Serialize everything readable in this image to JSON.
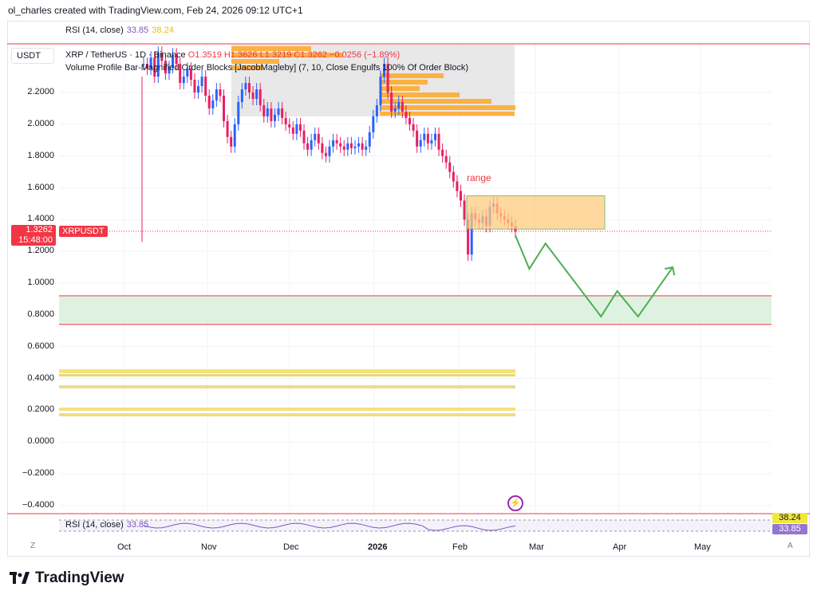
{
  "header": {
    "text": "ol_charles created with TradingView.com, Feb 24, 2026 09:12 UTC+1"
  },
  "rsi_top": {
    "label": "RSI (14, close)",
    "value1": "33.85",
    "value2": "38.24"
  },
  "currency": "USDT",
  "legend": {
    "symbol": "XRP / TetherUS · 1D · Binance",
    "ohlc": "O1.3519 H1.3626 L1.3219 C1.3262 −0.0256 (−1.89%)",
    "indicator": "Volume Profile Bar-Magnified Order Blocks [JacobMagleby] (7, 10, Close Engulfs 100% Of Order Block)"
  },
  "price_tag": {
    "price": "1.3262",
    "countdown": "15:48:00",
    "symbol": "XRPUSDT"
  },
  "annotation": {
    "range_label": "range"
  },
  "rsi_bottom": {
    "label": "RSI (14, close)",
    "value1": "33.85",
    "badge_yellow": "38.24",
    "badge_purple": "33.85"
  },
  "zoom": {
    "left": "Z",
    "right": "A"
  },
  "footer": {
    "brand": "TradingView"
  },
  "colors": {
    "up": "#2962ff",
    "down": "#e91e63",
    "projection": "#4caf50",
    "zone_red": "#f23645"
  },
  "chart_data": {
    "type": "candlestick",
    "y_ticks": [
      "2.2000",
      "2.0000",
      "1.8000",
      "1.6000",
      "1.4000",
      "1.2000",
      "1.0000",
      "0.8000",
      "0.6000",
      "0.4000",
      "0.2000",
      "0.0000",
      "−0.2000",
      "−0.4000"
    ],
    "x_ticks": [
      {
        "label": "Oct",
        "bold": false
      },
      {
        "label": "Nov",
        "bold": false
      },
      {
        "label": "Dec",
        "bold": false
      },
      {
        "label": "2026",
        "bold": true
      },
      {
        "label": "Feb",
        "bold": false
      },
      {
        "label": "Mar",
        "bold": false
      },
      {
        "label": "Apr",
        "bold": false
      },
      {
        "label": "May",
        "bold": false
      }
    ],
    "ylim": [
      -0.45,
      2.45
    ],
    "last_price": 1.3262,
    "range_box": {
      "x0": 0,
      "x1": 0,
      "y_low": 1.34,
      "y_high": 1.55
    },
    "support_zone": {
      "y_low": 0.74,
      "y_high": 0.92
    },
    "projection_path": [
      [
        1.3,
        0
      ],
      [
        1.09,
        0
      ],
      [
        1.25,
        0
      ],
      [
        0.79,
        0
      ],
      [
        0.95,
        0
      ],
      [
        0.79,
        0
      ],
      [
        1.1,
        0
      ]
    ],
    "projection_x_frac": [
      0.0,
      0.06,
      0.13,
      0.37,
      0.44,
      0.53,
      0.68
    ],
    "series_close": [
      2.38,
      2.35,
      2.42,
      2.3,
      2.45,
      2.4,
      2.32,
      2.36,
      2.44,
      2.38,
      2.26,
      2.3,
      2.35,
      2.28,
      2.2,
      2.24,
      2.3,
      2.18,
      2.1,
      2.15,
      2.22,
      2.18,
      2.02,
      1.92,
      1.86,
      2.0,
      2.14,
      2.22,
      2.26,
      2.2,
      2.16,
      2.22,
      2.12,
      2.05,
      2.1,
      2.02,
      2.06,
      2.1,
      2.04,
      2.0,
      1.98,
      1.94,
      2.0,
      1.96,
      1.88,
      1.84,
      1.9,
      1.94,
      1.88,
      1.82,
      1.8,
      1.86,
      1.9,
      1.88,
      1.86,
      1.84,
      1.88,
      1.85,
      1.86,
      1.88,
      1.84,
      1.86,
      1.95,
      2.05,
      2.12,
      2.3,
      2.38,
      2.2,
      2.08,
      2.1,
      2.14,
      2.08,
      2.04,
      2.0,
      1.96,
      1.86,
      1.9,
      1.94,
      1.88,
      1.9,
      1.94,
      1.84,
      1.8,
      1.76,
      1.7,
      1.64,
      1.58,
      1.52,
      1.4,
      1.18,
      1.44,
      1.4,
      1.38,
      1.42,
      1.36,
      1.48,
      1.5,
      1.44,
      1.42,
      1.4,
      1.38,
      1.36,
      1.3262
    ]
  }
}
